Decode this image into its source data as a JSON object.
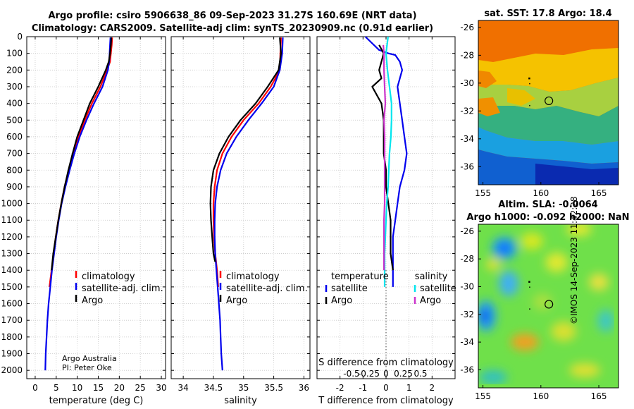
{
  "header": {
    "title_line1": "Argo profile: csiro 5906638_86 09-Sep-2023 31.27S 160.69E (NRT data)",
    "title_line2": "Climatology: CARS2009. Satellite-adj clim: synTS_20230909.nc (0.91d earlier)"
  },
  "credits": {
    "line1": "Argo Australia",
    "line2": "PI: Peter Oke"
  },
  "stamp": "©IMOS 14-Sep-2023 11:42:28",
  "colors": {
    "climatology": "#ff0000",
    "satellite": "#0000ee",
    "argo": "#000000",
    "s_satellite": "#00e5ee",
    "s_argo": "#cc33cc"
  },
  "chart_data": [
    {
      "type": "line",
      "name": "temperature-profile",
      "xlabel": "temperature (deg C)",
      "ylabel": "",
      "xlim": [
        -2,
        31
      ],
      "ylim": [
        0,
        2050
      ],
      "xticks": [
        0,
        5,
        10,
        15,
        20,
        25,
        30
      ],
      "yticks": [
        0,
        100,
        200,
        300,
        400,
        500,
        600,
        700,
        800,
        900,
        1000,
        1100,
        1200,
        1300,
        1400,
        1500,
        1600,
        1700,
        1800,
        1900,
        2000
      ],
      "grid": true,
      "legend": [
        "climatology",
        "satellite-adj. clim.",
        "Argo"
      ],
      "series": [
        {
          "name": "climatology",
          "color": "red",
          "points": [
            [
              18.3,
              5
            ],
            [
              18.2,
              50
            ],
            [
              18.0,
              100
            ],
            [
              17.8,
              150
            ],
            [
              17.1,
              200
            ],
            [
              15.5,
              300
            ],
            [
              13.5,
              400
            ],
            [
              11.8,
              500
            ],
            [
              10.3,
              600
            ],
            [
              9.1,
              700
            ],
            [
              8.0,
              800
            ],
            [
              7.0,
              900
            ],
            [
              6.2,
              1000
            ],
            [
              5.5,
              1100
            ],
            [
              4.9,
              1200
            ],
            [
              4.4,
              1300
            ],
            [
              3.9,
              1400
            ],
            [
              3.4,
              1500
            ]
          ]
        },
        {
          "name": "satellite-adj. clim.",
          "color": "blue",
          "points": [
            [
              17.9,
              5
            ],
            [
              17.8,
              50
            ],
            [
              17.7,
              100
            ],
            [
              17.6,
              150
            ],
            [
              17.3,
              200
            ],
            [
              16.0,
              300
            ],
            [
              14.0,
              400
            ],
            [
              12.2,
              500
            ],
            [
              10.6,
              600
            ],
            [
              9.3,
              700
            ],
            [
              8.2,
              800
            ],
            [
              7.2,
              900
            ],
            [
              6.3,
              1000
            ],
            [
              5.6,
              1100
            ],
            [
              5.0,
              1200
            ],
            [
              4.5,
              1300
            ],
            [
              4.0,
              1400
            ],
            [
              3.6,
              1500
            ],
            [
              3.2,
              1600
            ],
            [
              2.9,
              1700
            ],
            [
              2.7,
              1800
            ],
            [
              2.5,
              1900
            ],
            [
              2.4,
              2000
            ]
          ]
        },
        {
          "name": "Argo",
          "color": "black",
          "points": [
            [
              18.1,
              5
            ],
            [
              18.0,
              50
            ],
            [
              17.8,
              100
            ],
            [
              17.5,
              150
            ],
            [
              16.8,
              200
            ],
            [
              15.0,
              300
            ],
            [
              13.0,
              400
            ],
            [
              11.5,
              500
            ],
            [
              10.0,
              600
            ],
            [
              8.9,
              700
            ],
            [
              7.9,
              800
            ],
            [
              7.0,
              900
            ],
            [
              6.2,
              1000
            ],
            [
              5.5,
              1100
            ],
            [
              4.9,
              1200
            ],
            [
              4.3,
              1300
            ],
            [
              3.9,
              1400
            ]
          ]
        }
      ]
    },
    {
      "type": "line",
      "name": "salinity-profile",
      "xlabel": "salinity",
      "xlim": [
        33.8,
        36.1
      ],
      "ylim": [
        0,
        2050
      ],
      "xticks": [
        34,
        34.5,
        35,
        35.5,
        36
      ],
      "grid": true,
      "legend": [
        "climatology",
        "satellite-adj. clim.",
        "Argo"
      ],
      "series": [
        {
          "name": "climatology",
          "color": "red",
          "points": [
            [
              35.62,
              5
            ],
            [
              35.61,
              100
            ],
            [
              35.6,
              200
            ],
            [
              35.45,
              300
            ],
            [
              35.25,
              400
            ],
            [
              35.0,
              500
            ],
            [
              34.8,
              600
            ],
            [
              34.65,
              700
            ],
            [
              34.56,
              800
            ],
            [
              34.52,
              900
            ],
            [
              34.5,
              1000
            ],
            [
              34.5,
              1100
            ],
            [
              34.51,
              1200
            ],
            [
              34.53,
              1300
            ],
            [
              34.56,
              1400
            ],
            [
              34.58,
              1500
            ]
          ]
        },
        {
          "name": "satellite-adj. clim.",
          "color": "blue",
          "points": [
            [
              35.65,
              5
            ],
            [
              35.64,
              100
            ],
            [
              35.6,
              200
            ],
            [
              35.5,
              300
            ],
            [
              35.3,
              400
            ],
            [
              35.08,
              500
            ],
            [
              34.88,
              600
            ],
            [
              34.72,
              700
            ],
            [
              34.62,
              800
            ],
            [
              34.56,
              900
            ],
            [
              34.53,
              1000
            ],
            [
              34.52,
              1100
            ],
            [
              34.52,
              1200
            ],
            [
              34.53,
              1300
            ],
            [
              34.55,
              1400
            ],
            [
              34.57,
              1500
            ],
            [
              34.59,
              1600
            ],
            [
              34.61,
              1700
            ],
            [
              34.62,
              1800
            ],
            [
              34.63,
              1900
            ],
            [
              34.65,
              2000
            ]
          ]
        },
        {
          "name": "Argo",
          "color": "black",
          "points": [
            [
              35.6,
              5
            ],
            [
              35.62,
              100
            ],
            [
              35.58,
              200
            ],
            [
              35.4,
              300
            ],
            [
              35.2,
              400
            ],
            [
              34.95,
              500
            ],
            [
              34.75,
              600
            ],
            [
              34.6,
              700
            ],
            [
              34.5,
              800
            ],
            [
              34.46,
              900
            ],
            [
              34.45,
              1000
            ],
            [
              34.46,
              1100
            ],
            [
              34.48,
              1200
            ],
            [
              34.5,
              1300
            ],
            [
              34.53,
              1350
            ]
          ]
        }
      ]
    },
    {
      "type": "line",
      "name": "difference-profile",
      "xlabel": "T difference from climatology",
      "xlabel_top": "S difference from climatology",
      "xlim": [
        -3,
        3
      ],
      "ylim": [
        0,
        2050
      ],
      "xticks": [
        -2,
        -1,
        0,
        1,
        2
      ],
      "xticks_top": [
        -0.5,
        -0.25,
        0,
        0.25,
        0.5
      ],
      "grid": true,
      "legend_titles": [
        "temperature",
        "salinity"
      ],
      "legend_t": [
        "satellite",
        "Argo"
      ],
      "legend_s": [
        "satellite",
        "Argo"
      ],
      "series": [
        {
          "name": "T satellite",
          "color": "blue",
          "points": [
            [
              -0.9,
              0
            ],
            [
              -0.6,
              40
            ],
            [
              -0.3,
              80
            ],
            [
              0.1,
              100
            ],
            [
              0.4,
              110
            ],
            [
              0.6,
              150
            ],
            [
              0.7,
              200
            ],
            [
              0.5,
              300
            ],
            [
              0.6,
              400
            ],
            [
              0.7,
              500
            ],
            [
              0.8,
              600
            ],
            [
              0.9,
              700
            ],
            [
              0.8,
              800
            ],
            [
              0.6,
              900
            ],
            [
              0.5,
              1000
            ],
            [
              0.4,
              1100
            ],
            [
              0.3,
              1200
            ],
            [
              0.3,
              1300
            ],
            [
              0.3,
              1400
            ],
            [
              0.3,
              1500
            ]
          ]
        },
        {
          "name": "T Argo",
          "color": "black",
          "points": [
            [
              -0.3,
              50
            ],
            [
              -0.1,
              100
            ],
            [
              -0.3,
              200
            ],
            [
              -0.2,
              250
            ],
            [
              -0.6,
              300
            ],
            [
              -0.2,
              400
            ],
            [
              -0.1,
              500
            ],
            [
              -0.1,
              600
            ],
            [
              -0.1,
              700
            ],
            [
              0.0,
              800
            ],
            [
              0.0,
              900
            ],
            [
              0.1,
              1000
            ],
            [
              0.2,
              1100
            ],
            [
              0.2,
              1200
            ],
            [
              0.2,
              1300
            ],
            [
              0.3,
              1400
            ]
          ]
        },
        {
          "name": "S satellite",
          "color": "cyan",
          "points": [
            [
              0.03,
              0
            ],
            [
              0.0,
              100
            ],
            [
              0.02,
              200
            ],
            [
              0.05,
              300
            ],
            [
              0.08,
              400
            ],
            [
              0.08,
              500
            ],
            [
              0.07,
              600
            ],
            [
              0.05,
              700
            ],
            [
              0.04,
              800
            ],
            [
              0.03,
              900
            ],
            [
              0.01,
              1000
            ],
            [
              0.0,
              1100
            ],
            [
              -0.01,
              1200
            ],
            [
              -0.02,
              1300
            ],
            [
              -0.02,
              1400
            ],
            [
              -0.02,
              1500
            ]
          ]
        },
        {
          "name": "S Argo",
          "color": "magenta",
          "points": [
            [
              -0.04,
              50
            ],
            [
              -0.03,
              100
            ],
            [
              -0.03,
              200
            ],
            [
              -0.02,
              300
            ],
            [
              -0.01,
              400
            ],
            [
              -0.03,
              500
            ],
            [
              -0.02,
              600
            ],
            [
              -0.02,
              700
            ],
            [
              -0.02,
              800
            ],
            [
              -0.02,
              900
            ],
            [
              -0.02,
              1000
            ],
            [
              -0.03,
              1100
            ],
            [
              -0.03,
              1200
            ],
            [
              -0.03,
              1300
            ],
            [
              -0.03,
              1400
            ]
          ]
        }
      ]
    },
    {
      "type": "heatmap",
      "name": "sst-map",
      "title": "sat. SST: 17.8 Argo: 18.4",
      "xticks": [
        155,
        160,
        165
      ],
      "yticks": [
        -26,
        -28,
        -30,
        -32,
        -34,
        -36
      ],
      "xlim": [
        154.6,
        166.7
      ],
      "ylim": [
        -37.3,
        -25.5
      ],
      "argo_position": [
        160.69,
        -31.27
      ]
    },
    {
      "type": "heatmap",
      "name": "sla-map",
      "title_line1": "Altim. SLA: -0.0064",
      "title_line2": "Argo h1000: -0.092 h2000: NaN",
      "xticks": [
        155,
        160,
        165
      ],
      "yticks": [
        -26,
        -28,
        -30,
        -32,
        -34,
        -36
      ],
      "xlim": [
        154.6,
        166.7
      ],
      "ylim": [
        -37.3,
        -25.5
      ],
      "argo_position": [
        160.69,
        -31.27
      ]
    }
  ]
}
